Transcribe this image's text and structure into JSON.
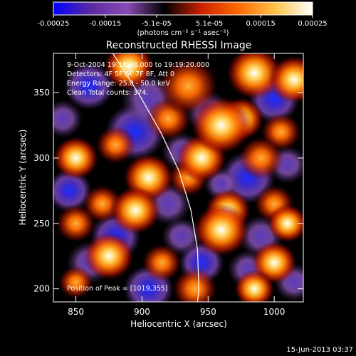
{
  "chart_data": {
    "type": "heatmap",
    "title": "Reconstructed RHESSI Image",
    "xlabel": "Heliocentric X (arcsec)",
    "ylabel": "Heliocentric Y (arcsec)",
    "xlim": [
      833,
      1022
    ],
    "ylim": [
      190,
      380
    ],
    "x_ticks": [
      "850",
      "900",
      "950",
      "1000"
    ],
    "x_tick_values": [
      850,
      900,
      950,
      1000
    ],
    "y_ticks": [
      "200",
      "250",
      "300",
      "350"
    ],
    "y_tick_values": [
      200,
      250,
      300,
      350
    ],
    "colorbar": {
      "range": [
        -0.00025,
        0.00025
      ],
      "tick_labels": [
        "-0.00025",
        "-0.00015",
        "-5.1e-05",
        "5.1e-05",
        "0.00015",
        "0.00025"
      ],
      "tick_values": [
        -0.00025,
        -0.00015,
        -5.1e-05,
        5.1e-05,
        0.00015,
        0.00025
      ],
      "unit_label": "(photons cm⁻² s⁻¹ asec⁻²)",
      "colors": [
        "#0000ff",
        "#5a2aa0",
        "#8a4ab4",
        "#000000",
        "#cc2200",
        "#ff6a00",
        "#ffc34a",
        "#ffffff"
      ]
    },
    "annotations": {
      "time": "9-Oct-2004 19:18:48.000 to 19:19:20.000",
      "detectors": "Detectors: 4F 5F 6F 7F 8F, Att 0",
      "energy": "Energy Range: 25.0 - 50.0 keV",
      "clean": "Clean     Total counts: 374.",
      "peak": "Position of Peak = [1019,355]"
    },
    "limb_curve": [
      [
        878,
        380
      ],
      [
        897,
        350
      ],
      [
        914,
        320
      ],
      [
        928,
        290
      ],
      [
        937,
        260
      ],
      [
        942,
        230
      ],
      [
        943,
        200
      ],
      [
        942,
        190
      ]
    ],
    "blobs": [
      [
        890,
        370,
        1.0,
        10
      ],
      [
        935,
        355,
        0.7,
        12
      ],
      [
        985,
        365,
        0.9,
        11
      ],
      [
        1015,
        360,
        1.0,
        10
      ],
      [
        920,
        330,
        0.6,
        9
      ],
      [
        960,
        325,
        1.0,
        12
      ],
      [
        975,
        330,
        0.9,
        9
      ],
      [
        1005,
        320,
        0.5,
        8
      ],
      [
        850,
        300,
        0.9,
        9
      ],
      [
        880,
        310,
        0.7,
        8
      ],
      [
        945,
        300,
        0.8,
        10
      ],
      [
        990,
        300,
        0.6,
        9
      ],
      [
        905,
        285,
        1.0,
        10
      ],
      [
        935,
        285,
        0.7,
        8
      ],
      [
        870,
        265,
        0.5,
        8
      ],
      [
        895,
        260,
        1.0,
        10
      ],
      [
        965,
        260,
        0.8,
        9
      ],
      [
        1000,
        265,
        0.7,
        8
      ],
      [
        850,
        250,
        0.5,
        8
      ],
      [
        960,
        245,
        0.9,
        11
      ],
      [
        1010,
        250,
        1.0,
        8
      ],
      [
        875,
        225,
        0.8,
        10
      ],
      [
        915,
        220,
        0.7,
        8
      ],
      [
        1000,
        220,
        0.8,
        9
      ],
      [
        850,
        205,
        0.5,
        7
      ],
      [
        940,
        200,
        0.7,
        9
      ],
      [
        985,
        200,
        0.8,
        8
      ],
      [
        860,
        355,
        -0.9,
        10
      ],
      [
        905,
        345,
        -0.8,
        11
      ],
      [
        950,
        335,
        -0.8,
        9
      ],
      [
        1000,
        345,
        -0.9,
        10
      ],
      [
        840,
        330,
        -0.6,
        8
      ],
      [
        895,
        320,
        -1.0,
        12
      ],
      [
        930,
        305,
        -0.7,
        8
      ],
      [
        980,
        285,
        -0.9,
        11
      ],
      [
        1010,
        295,
        -0.8,
        8
      ],
      [
        845,
        275,
        -0.9,
        9
      ],
      [
        920,
        265,
        -0.8,
        9
      ],
      [
        880,
        240,
        -0.9,
        10
      ],
      [
        930,
        240,
        -0.6,
        8
      ],
      [
        990,
        240,
        -0.8,
        9
      ],
      [
        860,
        220,
        -0.7,
        9
      ],
      [
        945,
        220,
        -1.0,
        9
      ],
      [
        980,
        215,
        -0.7,
        8
      ],
      [
        905,
        200,
        -0.9,
        10
      ],
      [
        1015,
        205,
        -0.8,
        8
      ],
      [
        960,
        280,
        -0.5,
        7
      ]
    ],
    "footer_date": "15-Jun-2013 03:37"
  }
}
